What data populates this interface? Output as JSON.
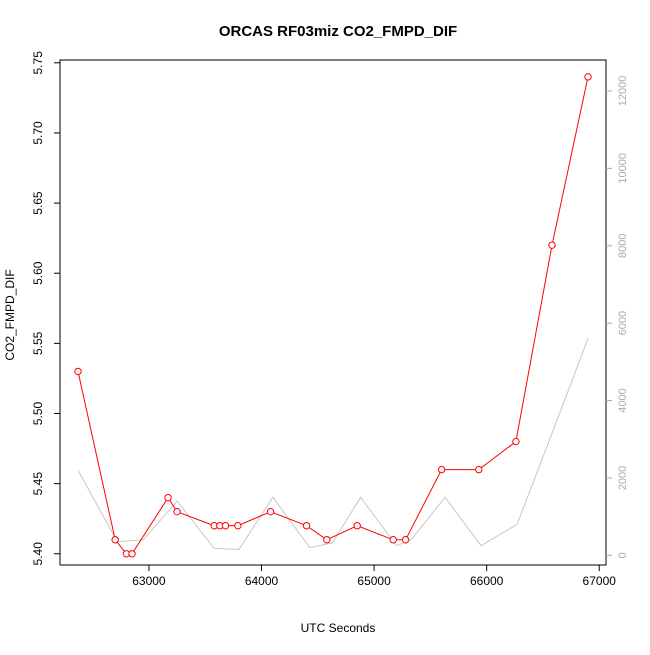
{
  "chart_data": {
    "type": "line",
    "title": "ORCAS RF03miz CO2_FMPD_DIF",
    "xlabel": "UTC Seconds",
    "ylabel": "CO2_FMPD_DIF",
    "xlim": [
      62210,
      67060
    ],
    "ylim": [
      5.392,
      5.752
    ],
    "y2lim": [
      -250,
      12800
    ],
    "x_ticks": [
      63000,
      64000,
      65000,
      66000,
      67000
    ],
    "y_ticks": [
      5.4,
      5.45,
      5.5,
      5.55,
      5.6,
      5.65,
      5.7,
      5.75
    ],
    "y_tick_labels": [
      "5.40",
      "5.45",
      "5.50",
      "5.55",
      "5.60",
      "5.65",
      "5.70",
      "5.75"
    ],
    "y2_ticks": [
      0,
      2000,
      4000,
      6000,
      8000,
      10000,
      12000
    ],
    "grid": false,
    "legend": "none",
    "series": [
      {
        "role": "primary",
        "axis": "left",
        "color": "#ff0000",
        "marker": "open-circle",
        "x": [
          62370,
          62700,
          62800,
          62850,
          63170,
          63250,
          63580,
          63630,
          63680,
          63790,
          64080,
          64400,
          64580,
          64850,
          65170,
          65280,
          65600,
          65930,
          66260,
          66580,
          66900
        ],
        "values": [
          5.53,
          5.41,
          5.4,
          5.4,
          5.44,
          5.43,
          5.42,
          5.42,
          5.42,
          5.42,
          5.43,
          5.42,
          5.41,
          5.42,
          5.41,
          5.41,
          5.46,
          5.46,
          5.48,
          5.62,
          5.74
        ]
      },
      {
        "role": "secondary",
        "axis": "right",
        "color": "#c8c8c8",
        "marker": "none",
        "x": [
          62370,
          62720,
          62950,
          63250,
          63580,
          63800,
          64100,
          64430,
          64630,
          64880,
          65200,
          65330,
          65630,
          65950,
          66270,
          66600,
          66900
        ],
        "values": [
          2200,
          350,
          400,
          1400,
          180,
          150,
          1500,
          200,
          320,
          1500,
          250,
          400,
          1500,
          250,
          800,
          3300,
          5600
        ]
      }
    ]
  }
}
